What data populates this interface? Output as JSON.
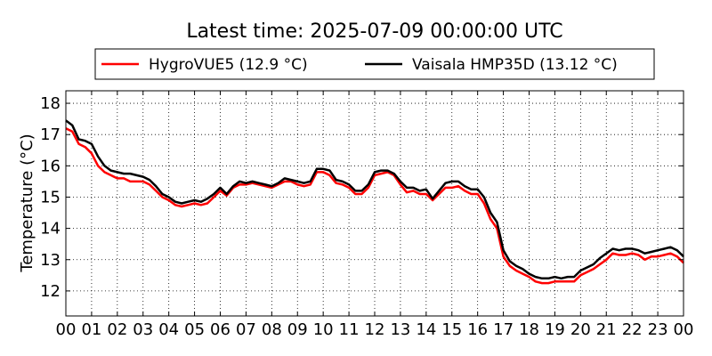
{
  "chart_data": {
    "type": "line",
    "title": "Latest time: 2025-07-09 00:00:00 UTC",
    "xlabel": "",
    "ylabel": "Temperature (°C)",
    "xlim": [
      0,
      24
    ],
    "ylim": [
      11.2,
      18.4
    ],
    "x_ticks": [
      "00",
      "01",
      "02",
      "03",
      "04",
      "05",
      "06",
      "07",
      "08",
      "09",
      "10",
      "11",
      "12",
      "13",
      "14",
      "15",
      "16",
      "17",
      "18",
      "19",
      "20",
      "21",
      "22",
      "23",
      "00"
    ],
    "y_ticks": [
      12,
      13,
      14,
      15,
      16,
      17,
      18
    ],
    "grid": true,
    "legend_position": "top",
    "series": [
      {
        "name": "HygroVUE5 (12.9 °C)",
        "color": "#ff0000",
        "x": [
          0,
          0.25,
          0.5,
          0.75,
          1,
          1.25,
          1.5,
          1.75,
          2,
          2.25,
          2.5,
          2.75,
          3,
          3.25,
          3.5,
          3.75,
          4,
          4.25,
          4.5,
          4.75,
          5,
          5.25,
          5.5,
          5.75,
          6,
          6.25,
          6.5,
          6.75,
          7,
          7.25,
          7.5,
          7.75,
          8,
          8.25,
          8.5,
          8.75,
          9,
          9.25,
          9.5,
          9.75,
          10,
          10.25,
          10.5,
          10.75,
          11,
          11.25,
          11.5,
          11.75,
          12,
          12.25,
          12.5,
          12.75,
          13,
          13.25,
          13.5,
          13.75,
          14,
          14.25,
          14.5,
          14.75,
          15,
          15.25,
          15.5,
          15.75,
          16,
          16.25,
          16.5,
          16.75,
          17,
          17.25,
          17.5,
          17.75,
          18,
          18.25,
          18.5,
          18.75,
          19,
          19.25,
          19.5,
          19.75,
          20,
          20.25,
          20.5,
          20.75,
          21,
          21.25,
          21.5,
          21.75,
          22,
          22.25,
          22.5,
          22.75,
          23,
          23.25,
          23.5,
          23.75,
          24
        ],
        "y": [
          17.2,
          17.1,
          16.7,
          16.6,
          16.4,
          16.0,
          15.8,
          15.7,
          15.6,
          15.6,
          15.5,
          15.5,
          15.5,
          15.4,
          15.2,
          15.0,
          14.9,
          14.75,
          14.7,
          14.75,
          14.8,
          14.75,
          14.8,
          15.0,
          15.2,
          15.05,
          15.3,
          15.4,
          15.4,
          15.45,
          15.4,
          15.35,
          15.3,
          15.4,
          15.5,
          15.5,
          15.4,
          15.35,
          15.4,
          15.8,
          15.8,
          15.7,
          15.45,
          15.4,
          15.3,
          15.1,
          15.1,
          15.3,
          15.7,
          15.75,
          15.8,
          15.7,
          15.4,
          15.15,
          15.2,
          15.1,
          15.1,
          14.9,
          15.1,
          15.3,
          15.3,
          15.35,
          15.2,
          15.1,
          15.1,
          14.8,
          14.3,
          14.0,
          13.1,
          12.8,
          12.65,
          12.55,
          12.45,
          12.3,
          12.25,
          12.25,
          12.3,
          12.3,
          12.3,
          12.3,
          12.5,
          12.6,
          12.7,
          12.85,
          13.0,
          13.2,
          13.15,
          13.15,
          13.2,
          13.15,
          13.0,
          13.1,
          13.1,
          13.15,
          13.2,
          13.1,
          12.9
        ]
      },
      {
        "name": "Vaisala HMP35D (13.12 °C)",
        "color": "#000000",
        "x": [
          0,
          0.25,
          0.5,
          0.75,
          1,
          1.25,
          1.5,
          1.75,
          2,
          2.25,
          2.5,
          2.75,
          3,
          3.25,
          3.5,
          3.75,
          4,
          4.25,
          4.5,
          4.75,
          5,
          5.25,
          5.5,
          5.75,
          6,
          6.25,
          6.5,
          6.75,
          7,
          7.25,
          7.5,
          7.75,
          8,
          8.25,
          8.5,
          8.75,
          9,
          9.25,
          9.5,
          9.75,
          10,
          10.25,
          10.5,
          10.75,
          11,
          11.25,
          11.5,
          11.75,
          12,
          12.25,
          12.5,
          12.75,
          13,
          13.25,
          13.5,
          13.75,
          14,
          14.25,
          14.5,
          14.75,
          15,
          15.25,
          15.5,
          15.75,
          16,
          16.25,
          16.5,
          16.75,
          17,
          17.25,
          17.5,
          17.75,
          18,
          18.25,
          18.5,
          18.75,
          19,
          19.25,
          19.5,
          19.75,
          20,
          20.25,
          20.5,
          20.75,
          21,
          21.25,
          21.5,
          21.75,
          22,
          22.25,
          22.5,
          22.75,
          23,
          23.25,
          23.5,
          23.75,
          24
        ],
        "y": [
          17.45,
          17.3,
          16.85,
          16.8,
          16.7,
          16.3,
          16.0,
          15.85,
          15.8,
          15.75,
          15.75,
          15.7,
          15.65,
          15.55,
          15.35,
          15.1,
          15.0,
          14.85,
          14.8,
          14.85,
          14.9,
          14.85,
          14.95,
          15.1,
          15.3,
          15.1,
          15.35,
          15.5,
          15.45,
          15.5,
          15.45,
          15.4,
          15.35,
          15.45,
          15.6,
          15.55,
          15.5,
          15.45,
          15.5,
          15.9,
          15.9,
          15.85,
          15.55,
          15.5,
          15.4,
          15.2,
          15.2,
          15.4,
          15.8,
          15.85,
          15.85,
          15.75,
          15.5,
          15.3,
          15.3,
          15.2,
          15.25,
          14.95,
          15.2,
          15.45,
          15.5,
          15.5,
          15.35,
          15.25,
          15.25,
          15.0,
          14.5,
          14.2,
          13.3,
          12.95,
          12.8,
          12.7,
          12.55,
          12.45,
          12.4,
          12.4,
          12.45,
          12.4,
          12.45,
          12.45,
          12.65,
          12.75,
          12.85,
          13.05,
          13.2,
          13.35,
          13.3,
          13.35,
          13.35,
          13.3,
          13.2,
          13.25,
          13.3,
          13.35,
          13.4,
          13.3,
          13.1
        ]
      }
    ]
  }
}
